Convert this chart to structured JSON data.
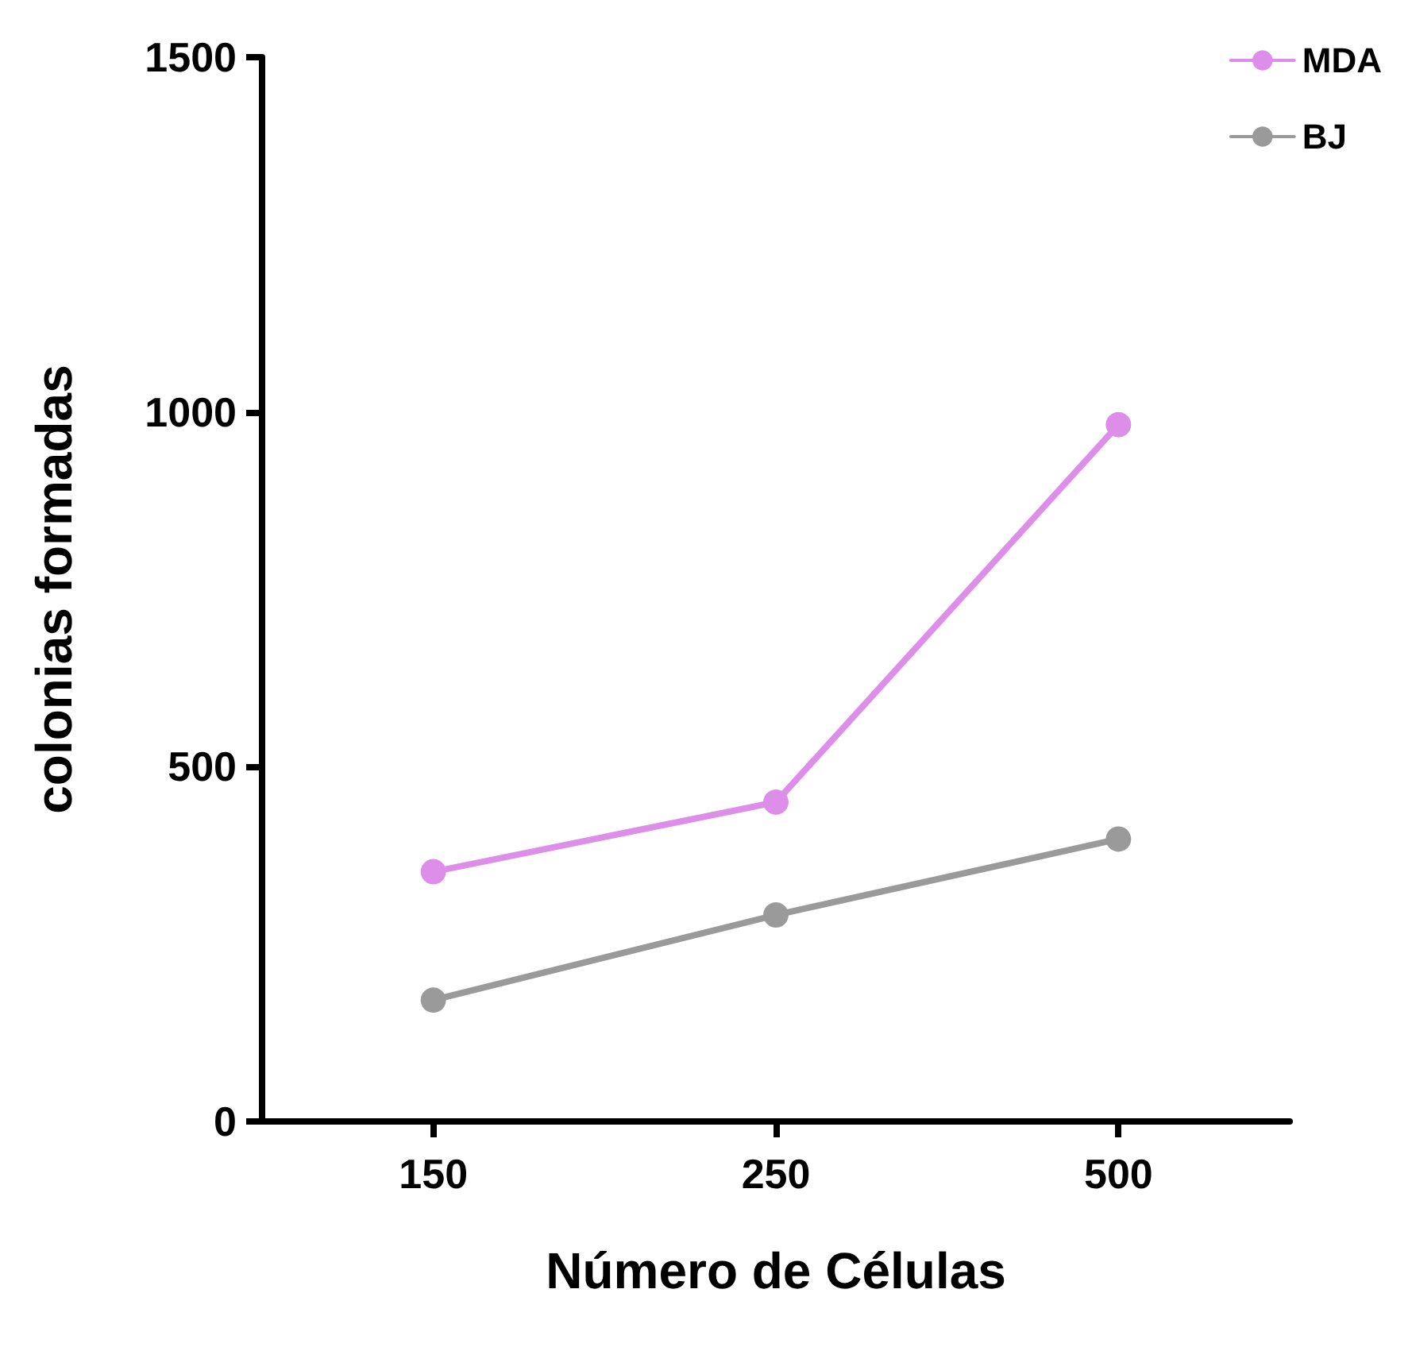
{
  "chart_data": {
    "type": "line",
    "xlabel": "Número de Células",
    "ylabel": "colonias formadas",
    "categories": [
      "150",
      "250",
      "500"
    ],
    "series": [
      {
        "name": "MDA",
        "color": "#dd8ee9",
        "values": [
          352,
          450,
          982
        ]
      },
      {
        "name": "BJ",
        "color": "#9a9a9a",
        "values": [
          171,
          291,
          398
        ]
      }
    ],
    "ylim": [
      0,
      1500
    ],
    "yticks": [
      0,
      500,
      1000,
      1500
    ],
    "grid": false,
    "legend": "top right",
    "marker": "circle",
    "line_style": "solid"
  }
}
